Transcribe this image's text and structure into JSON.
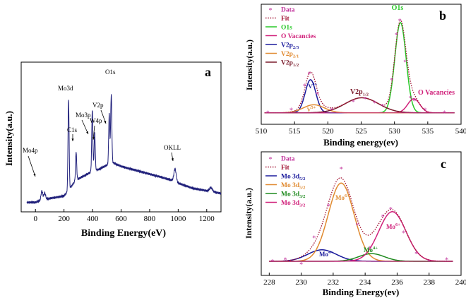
{
  "panels": {
    "a": {
      "label": "a",
      "xlabel": "Binding Energy(eV)",
      "ylabel": "Intensity(a.u.)"
    },
    "b": {
      "label": "b",
      "xlabel": "Binding energy(ev)",
      "ylabel": "Intensity(a.u.)"
    },
    "c": {
      "label": "c",
      "xlabel": "Binding Energy(ev)",
      "ylabel": "Intensity(a.u.)"
    }
  },
  "chart_data": [
    {
      "id": "a",
      "type": "line",
      "title": "",
      "xlabel": "Binding Energy(eV)",
      "ylabel": "Intensity(a.u.)",
      "xlim": [
        -100,
        1300
      ],
      "ylim": [
        0,
        100
      ],
      "xticks": [
        0,
        200,
        400,
        600,
        800,
        1000,
        1200
      ],
      "color": "#1f1f7a",
      "baseline": [
        [
          -100,
          2
        ],
        [
          0,
          3
        ],
        [
          50,
          5
        ],
        [
          200,
          8
        ],
        [
          230,
          12
        ],
        [
          280,
          20
        ],
        [
          380,
          26
        ],
        [
          450,
          29
        ],
        [
          520,
          33
        ],
        [
          540,
          34
        ],
        [
          600,
          31
        ],
        [
          700,
          28
        ],
        [
          800,
          25
        ],
        [
          900,
          22
        ],
        [
          960,
          20
        ],
        [
          1000,
          18
        ],
        [
          1100,
          14
        ],
        [
          1200,
          12
        ],
        [
          1300,
          10
        ]
      ],
      "peaks": [
        {
          "x": 45,
          "height": 7,
          "width": 6
        },
        {
          "x": 65,
          "height": 5,
          "width": 6
        },
        {
          "x": 232,
          "height": 70,
          "width": 4
        },
        {
          "x": 285,
          "height": 22,
          "width": 4
        },
        {
          "x": 398,
          "height": 48,
          "width": 4
        },
        {
          "x": 415,
          "height": 30,
          "width": 4
        },
        {
          "x": 517,
          "height": 39,
          "width": 4
        },
        {
          "x": 531,
          "height": 53,
          "width": 4
        },
        {
          "x": 978,
          "height": 10,
          "width": 8
        },
        {
          "x": 1230,
          "height": 3,
          "width": 10
        }
      ],
      "annotations": [
        {
          "text": "Mo4p",
          "x": 45
        },
        {
          "text": "Mo3d",
          "x": 232
        },
        {
          "text": "C1s",
          "x": 285
        },
        {
          "text": "Mo3p",
          "x": 398
        },
        {
          "text": "W4p",
          "x": 415
        },
        {
          "text": "V2p",
          "x": 517
        },
        {
          "text": "O1s",
          "x": 531
        },
        {
          "text": "OKLL",
          "x": 978
        }
      ]
    },
    {
      "id": "b",
      "type": "line",
      "title": "",
      "xlabel": "Binding energy(ev)",
      "ylabel": "Intensity(a.u.)",
      "xlim": [
        510,
        540
      ],
      "ylim": [
        0,
        100
      ],
      "xticks": [
        510,
        515,
        520,
        525,
        530,
        535,
        540
      ],
      "legend": [
        {
          "name": "Data",
          "color": "#c0309a",
          "kind": "marker"
        },
        {
          "name": "Fit",
          "color": "#a01030",
          "kind": "dotted"
        },
        {
          "name": "O1s",
          "color": "#28c828",
          "kind": "line"
        },
        {
          "name": "O Vacancies",
          "color": "#d0207a",
          "kind": "line"
        },
        {
          "name": "V2p",
          "sub": "2/3",
          "color": "#1a1a9c",
          "kind": "line"
        },
        {
          "name": "V2p",
          "sub": "2/1",
          "color": "#e08a30",
          "kind": "line"
        },
        {
          "name": "V2p",
          "sub": "1/2",
          "color": "#7a1a2a",
          "kind": "line"
        }
      ],
      "background": 3,
      "components": [
        {
          "name": "O1s",
          "color": "#28c828",
          "center": 530.9,
          "amp": 90,
          "sigma": 0.85
        },
        {
          "name": "O Vacancies",
          "color": "#d0207a",
          "center": 532.9,
          "amp": 14,
          "sigma": 0.9
        },
        {
          "name": "V2p 2/3",
          "color": "#1a1a9c",
          "center": 517.4,
          "amp": 33,
          "sigma": 0.8
        },
        {
          "name": "V2p 2/1",
          "color": "#e08a30",
          "center": 517.9,
          "amp": 8,
          "sigma": 1.6
        },
        {
          "name": "V2p 1/2",
          "color": "#7a1a2a",
          "center": 525.1,
          "amp": 15,
          "sigma": 2.5
        }
      ],
      "data_points": [
        [
          511,
          3
        ],
        [
          514.5,
          6
        ],
        [
          516.5,
          30
        ],
        [
          517.2,
          42
        ],
        [
          518.4,
          22
        ],
        [
          520.6,
          6
        ],
        [
          523.8,
          14
        ],
        [
          525.6,
          17
        ],
        [
          527,
          13
        ],
        [
          528.2,
          10
        ],
        [
          529.6,
          36
        ],
        [
          530.3,
          81
        ],
        [
          530.8,
          95
        ],
        [
          531.6,
          54
        ],
        [
          532.4,
          18
        ],
        [
          533,
          15
        ],
        [
          534.6,
          6
        ],
        [
          537.5,
          3
        ]
      ],
      "annotations": [
        {
          "text": "O1s",
          "x": 531,
          "color": "#28c828"
        },
        {
          "text": "V2p",
          "sub": "1/2",
          "x": 525,
          "color": "#7a1a2a"
        },
        {
          "text": "O Vacancies",
          "x": 536,
          "color": "#d0207a"
        },
        {
          "text": "V",
          "sup": "4+",
          "x": 516.5,
          "color": "#1a1a9c"
        },
        {
          "text": "V",
          "sup": "5+",
          "x": 516.5,
          "color": "#e08a30"
        }
      ]
    },
    {
      "id": "c",
      "type": "line",
      "title": "",
      "xlabel": "Binding Energy(ev)",
      "ylabel": "Intensity(a.u.)",
      "xlim": [
        227.5,
        240
      ],
      "ylim": [
        0,
        100
      ],
      "xticks": [
        228,
        230,
        232,
        234,
        236,
        238,
        240
      ],
      "legend": [
        {
          "name": "Data",
          "color": "#c0309a",
          "kind": "marker"
        },
        {
          "name": "Fit",
          "color": "#a01030",
          "kind": "dotted"
        },
        {
          "name": "Mo 3d",
          "sub": "5/2",
          "color": "#1a1a9c",
          "kind": "line"
        },
        {
          "name": "Mo 3d",
          "sub": "5/2",
          "color": "#e08a30",
          "kind": "line"
        },
        {
          "name": "Mo 3d",
          "sub": "3/2",
          "color": "#1e8a1e",
          "kind": "line"
        },
        {
          "name": "Mo 3d",
          "sub": "3/2",
          "color": "#d0207a",
          "kind": "line"
        }
      ],
      "background": 0,
      "components": [
        {
          "name": "Mo 3d 5/2 (Mo4+)",
          "color": "#1a1a9c",
          "center": 231.3,
          "amp": 12,
          "sigma": 0.9
        },
        {
          "name": "Mo 3d 5/2 (Mo6+)",
          "color": "#e08a30",
          "center": 232.5,
          "amp": 82,
          "sigma": 0.8
        },
        {
          "name": "Mo 3d 3/2 (Mo4+)",
          "color": "#1e8a1e",
          "center": 234.4,
          "amp": 8,
          "sigma": 0.8
        },
        {
          "name": "Mo 3d 3/2 (Mo6+)",
          "color": "#d0207a",
          "center": 235.7,
          "amp": 52,
          "sigma": 0.85
        }
      ],
      "data_points": [
        [
          228.2,
          0
        ],
        [
          229,
          2
        ],
        [
          230,
          -3
        ],
        [
          230.8,
          25
        ],
        [
          231.7,
          58
        ],
        [
          232.5,
          97
        ],
        [
          233.5,
          38
        ],
        [
          234.3,
          14
        ],
        [
          235.1,
          47
        ],
        [
          235.6,
          55
        ],
        [
          236.4,
          30
        ],
        [
          237.2,
          8
        ],
        [
          238,
          0
        ],
        [
          239.1,
          2
        ]
      ],
      "annotations": [
        {
          "text": "Mo",
          "sup": "6+",
          "x": 232.3,
          "color": "#e08a30"
        },
        {
          "text": "Mo",
          "sup": "6+",
          "x": 235.6,
          "color": "#d0207a"
        },
        {
          "text": "Mo",
          "sup": "4+",
          "x": 231.1,
          "color": "#1a1a9c"
        },
        {
          "text": "Mo",
          "sup": "4+",
          "x": 234.3,
          "color": "#1e8a1e"
        }
      ]
    }
  ]
}
